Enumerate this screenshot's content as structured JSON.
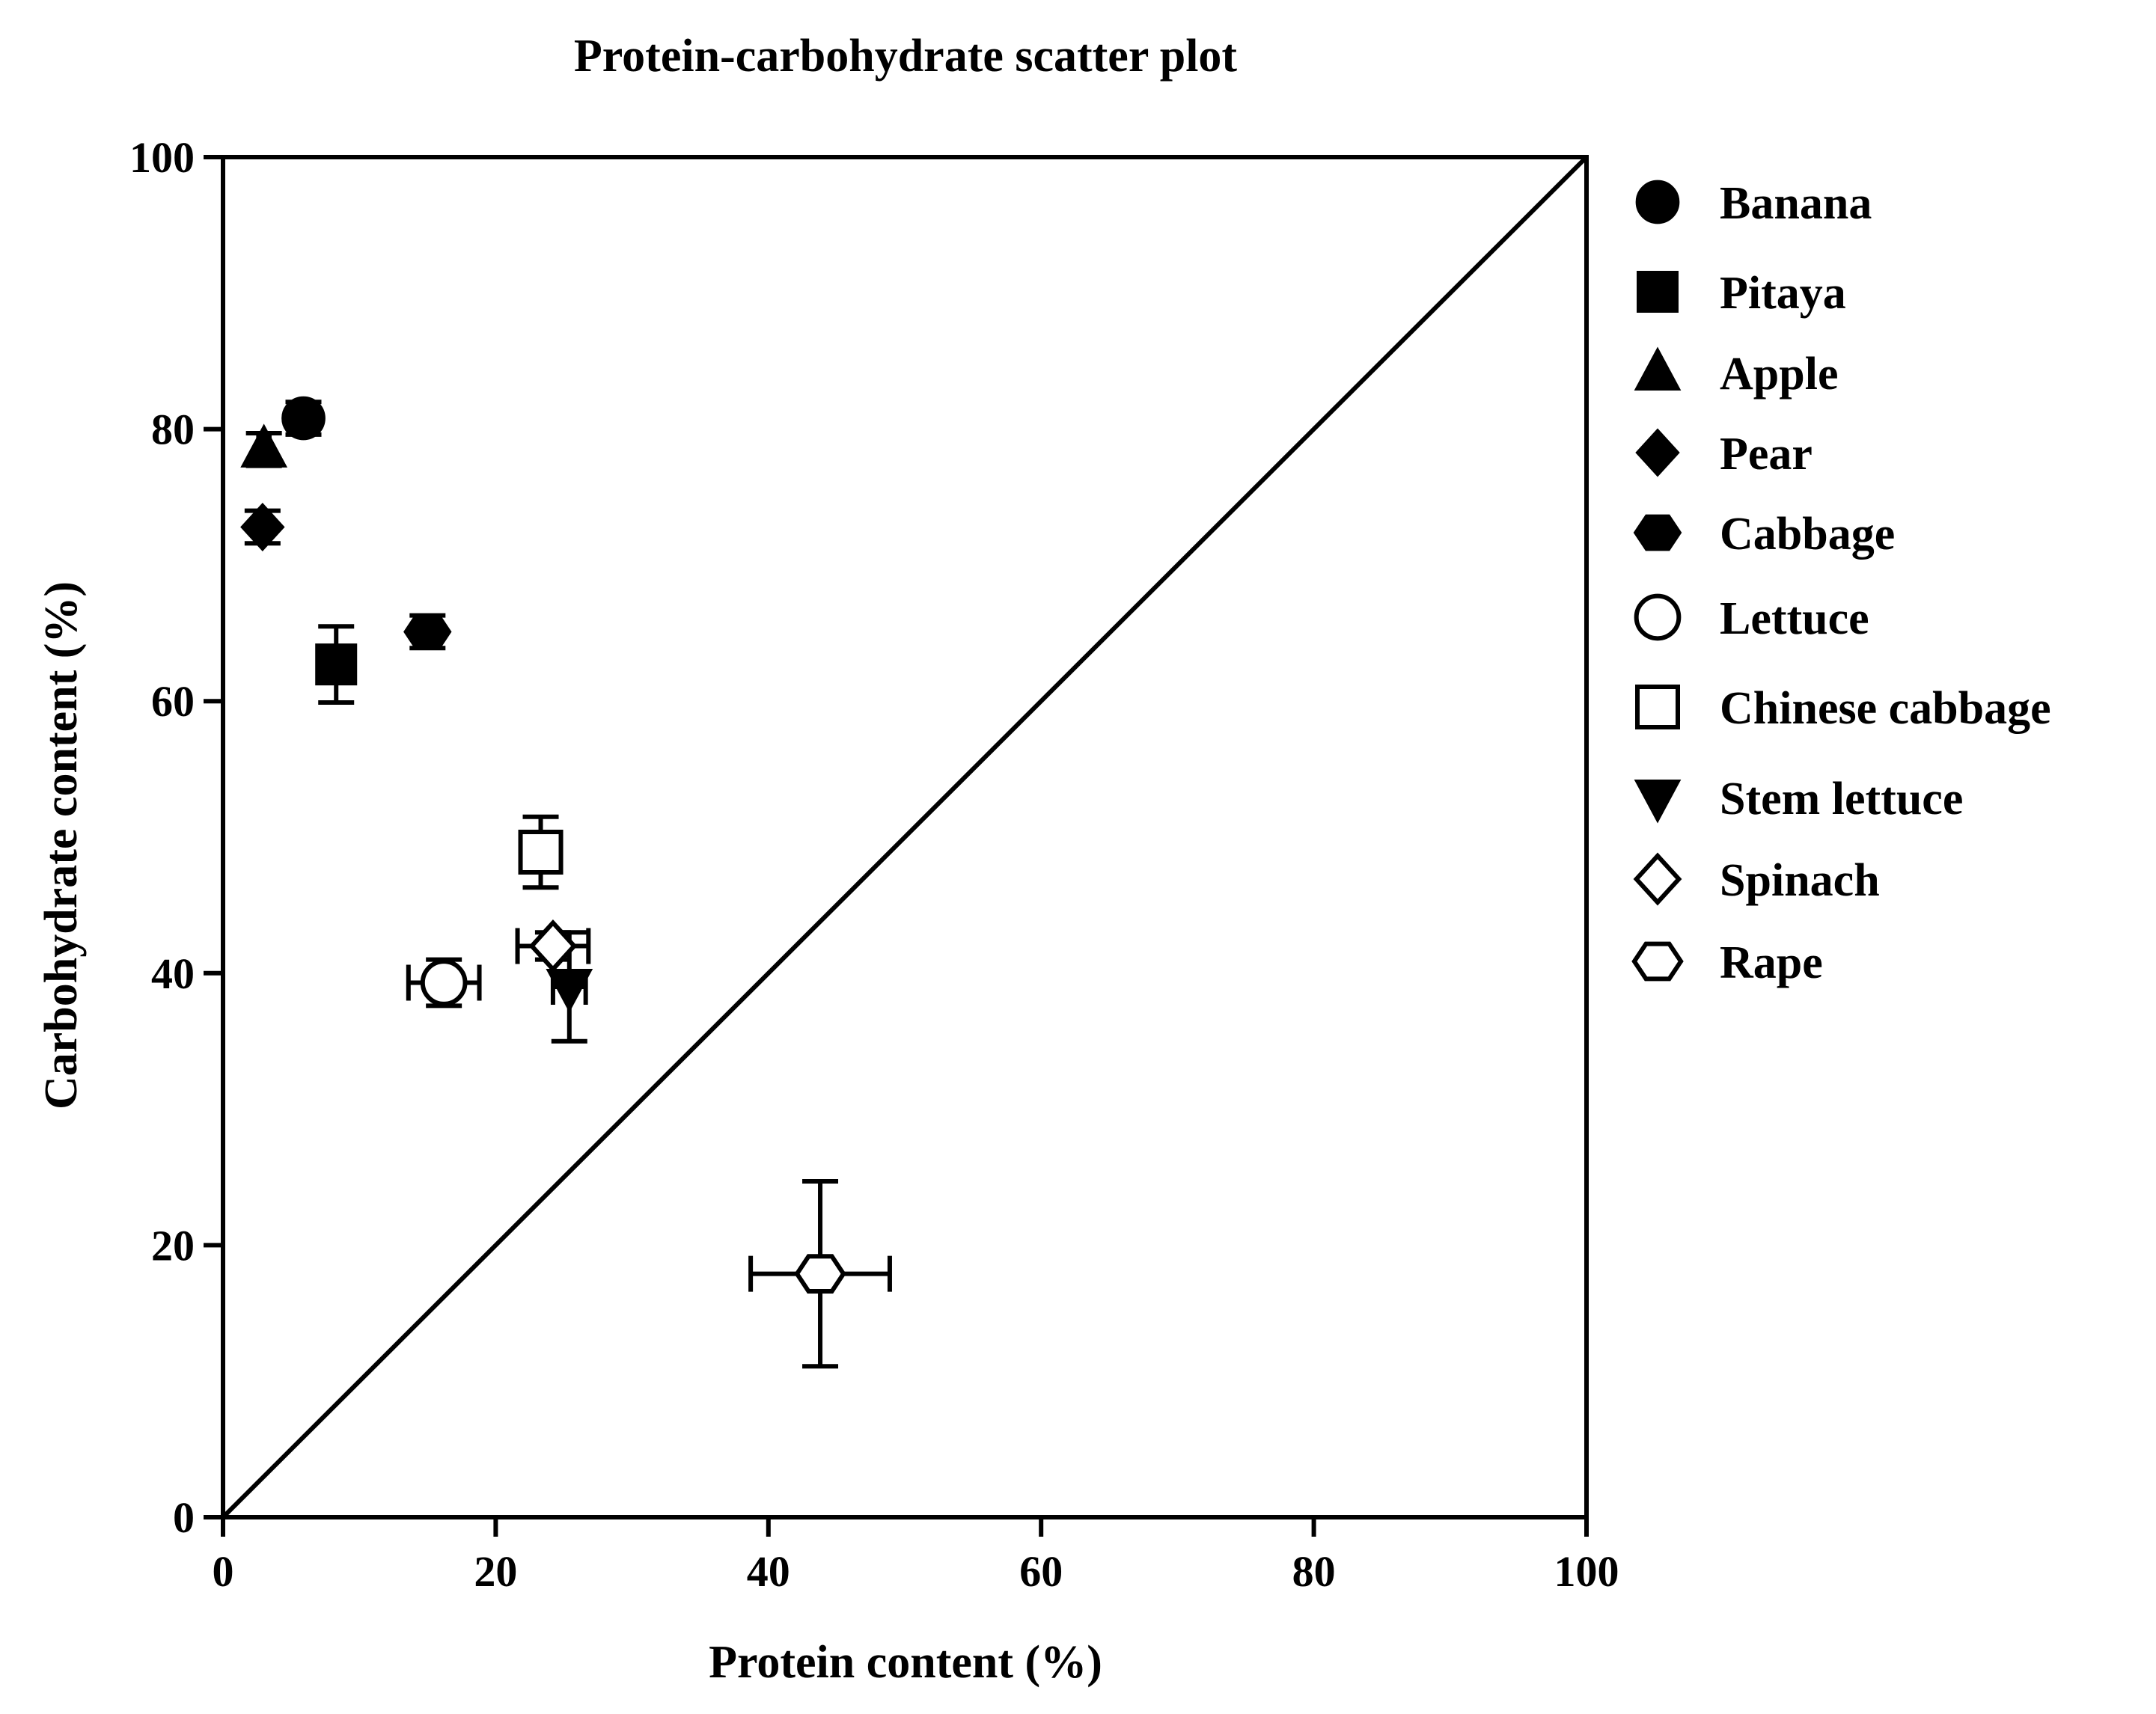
{
  "chart_data": {
    "type": "scatter",
    "title": "Protein-carbohydrate scatter plot",
    "xlabel": "Protein content (%)",
    "ylabel": "Carbohydrate content (%)",
    "xlim": [
      0,
      100
    ],
    "ylim": [
      0,
      100
    ],
    "x_ticks": [
      "0",
      "20",
      "40",
      "60",
      "80",
      "100"
    ],
    "y_ticks": [
      "0",
      "20",
      "40",
      "60",
      "80",
      "100"
    ],
    "grid": false,
    "legend_position": "right",
    "reference_line": {
      "x": [
        0,
        100
      ],
      "y": [
        0,
        100
      ]
    },
    "series": [
      {
        "name": "Banana",
        "marker": "circle",
        "filled": true,
        "x": 5.9,
        "y": 80.8,
        "xerr": 0.8,
        "yerr": 1.2
      },
      {
        "name": "Pitaya",
        "marker": "square",
        "filled": true,
        "x": 8.3,
        "y": 62.7,
        "xerr": 0.8,
        "yerr": 2.8
      },
      {
        "name": "Apple",
        "marker": "triangle-up",
        "filled": true,
        "x": 3.0,
        "y": 78.5,
        "xerr": 0.4,
        "yerr": 1.2
      },
      {
        "name": "Pear",
        "marker": "diamond",
        "filled": true,
        "x": 2.9,
        "y": 72.8,
        "xerr": 0.3,
        "yerr": 1.2
      },
      {
        "name": "Cabbage",
        "marker": "hexagon",
        "filled": true,
        "x": 15.0,
        "y": 65.1,
        "xerr": 0.6,
        "yerr": 1.2
      },
      {
        "name": "Lettuce",
        "marker": "circle",
        "filled": false,
        "x": 16.2,
        "y": 39.3,
        "xerr": 2.6,
        "yerr": 1.7
      },
      {
        "name": "Chinese cabbage",
        "marker": "square",
        "filled": false,
        "x": 23.3,
        "y": 48.9,
        "xerr": 0.8,
        "yerr": 2.6
      },
      {
        "name": "Stem lettuce",
        "marker": "triangle-down",
        "filled": true,
        "x": 25.4,
        "y": 39.0,
        "xerr": 1.2,
        "yerr": 4.0
      },
      {
        "name": "Spinach",
        "marker": "diamond",
        "filled": false,
        "x": 24.2,
        "y": 42.0,
        "xerr": 2.6,
        "yerr": 1.0
      },
      {
        "name": "Rape",
        "marker": "hexagon",
        "filled": false,
        "x": 43.8,
        "y": 17.9,
        "xerr": 5.1,
        "yerr": 6.8
      }
    ]
  }
}
